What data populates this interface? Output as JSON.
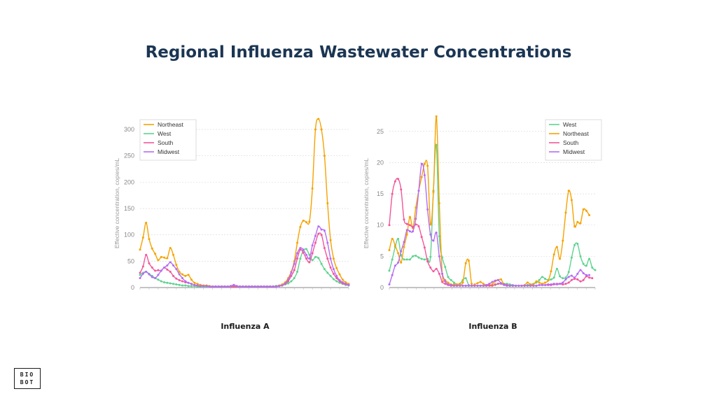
{
  "page": {
    "title": "Regional Influenza Wastewater Concentrations"
  },
  "logo": {
    "line1": "BIO",
    "line2": "BOT"
  },
  "colors": {
    "Northeast": "#f5a300",
    "West": "#5ed38f",
    "South": "#f2579a",
    "Midwest": "#b56cf5"
  },
  "chart_data": [
    {
      "type": "line",
      "title": "Influenza A",
      "ylabel": "Effective concentration, copies/mL",
      "ylim": [
        0,
        320
      ],
      "yticks": [
        0,
        50,
        100,
        150,
        200,
        250,
        300
      ],
      "grid": true,
      "legend_position": "top-left",
      "series": [
        {
          "name": "Northeast",
          "values": [
            72,
            95,
            123,
            92,
            74,
            64,
            52,
            58,
            57,
            56,
            75,
            62,
            43,
            30,
            25,
            22,
            24,
            15,
            9,
            7,
            5,
            4,
            4,
            3,
            2,
            2,
            2,
            2,
            2,
            2,
            2,
            2,
            2,
            2,
            2,
            2,
            2,
            2,
            2,
            2,
            2,
            2,
            2,
            2,
            2,
            3,
            4,
            6,
            10,
            18,
            30,
            50,
            85,
            115,
            127,
            124,
            125,
            188,
            300,
            320,
            300,
            250,
            160,
            90,
            55,
            37,
            25,
            15,
            10,
            7
          ]
        },
        {
          "name": "West",
          "values": [
            24,
            28,
            30,
            26,
            22,
            18,
            15,
            12,
            10,
            9,
            8,
            7,
            6,
            5,
            4,
            4,
            3,
            3,
            3,
            2,
            2,
            2,
            2,
            2,
            2,
            2,
            2,
            2,
            2,
            2,
            2,
            2,
            2,
            2,
            2,
            2,
            2,
            2,
            2,
            2,
            2,
            2,
            2,
            2,
            2,
            3,
            3,
            4,
            6,
            8,
            12,
            18,
            30,
            55,
            70,
            73,
            62,
            52,
            58,
            56,
            45,
            35,
            28,
            22,
            16,
            12,
            9,
            7,
            5,
            4
          ]
        },
        {
          "name": "South",
          "values": [
            28,
            40,
            62,
            46,
            38,
            32,
            33,
            32,
            38,
            34,
            30,
            22,
            17,
            14,
            12,
            10,
            9,
            7,
            5,
            4,
            3,
            3,
            3,
            2,
            2,
            2,
            2,
            2,
            2,
            2,
            2,
            2,
            2,
            2,
            2,
            2,
            2,
            2,
            2,
            2,
            2,
            2,
            2,
            2,
            2,
            2,
            3,
            4,
            7,
            12,
            22,
            33,
            55,
            72,
            66,
            55,
            48,
            65,
            85,
            102,
            100,
            75,
            55,
            38,
            26,
            18,
            12,
            8,
            6,
            5
          ]
        },
        {
          "name": "Midwest",
          "values": [
            18,
            26,
            30,
            25,
            20,
            18,
            24,
            32,
            38,
            42,
            48,
            42,
            35,
            25,
            18,
            12,
            9,
            7,
            5,
            4,
            3,
            3,
            3,
            2,
            2,
            2,
            2,
            2,
            2,
            2,
            3,
            5,
            3,
            2,
            2,
            2,
            2,
            2,
            2,
            2,
            2,
            2,
            2,
            2,
            2,
            2,
            3,
            4,
            8,
            15,
            28,
            45,
            65,
            75,
            72,
            62,
            55,
            80,
            98,
            116,
            110,
            108,
            85,
            55,
            35,
            22,
            14,
            10,
            7,
            5
          ]
        }
      ],
      "xticks_count": 24
    },
    {
      "type": "line",
      "title": "Influenza B",
      "ylabel": "Effective concentration, copies/mL",
      "ylim": [
        0,
        27
      ],
      "yticks": [
        0,
        5,
        10,
        15,
        20,
        25
      ],
      "grid": true,
      "legend_position": "top-right",
      "series": [
        {
          "name": "West",
          "values": [
            2.7,
            4.5,
            6.5,
            7.8,
            5.2,
            4.5,
            4.5,
            4.5,
            5.0,
            5.1,
            4.8,
            4.6,
            4.5,
            4.6,
            4.9,
            15.5,
            22.8,
            8.2,
            4.8,
            3.3,
            1.7,
            1.2,
            0.8,
            0.5,
            0.6,
            1.2,
            1.5,
            0.4,
            0.3,
            0.3,
            0.3,
            0.3,
            0.3,
            0.3,
            0.4,
            0.4,
            0.4,
            0.6,
            0.7,
            0.6,
            0.6,
            0.5,
            0.4,
            0.3,
            0.3,
            0.3,
            0.3,
            0.4,
            0.5,
            0.6,
            0.8,
            1.2,
            1.7,
            1.4,
            1.2,
            1.3,
            1.6,
            3.0,
            1.8,
            1.5,
            1.6,
            2.5,
            4.8,
            6.8,
            7.0,
            5.0,
            3.8,
            3.5,
            4.6,
            3.2,
            2.8
          ]
        },
        {
          "name": "Northeast",
          "values": [
            6.0,
            7.8,
            6.7,
            5.5,
            4.0,
            6.5,
            8.5,
            11.3,
            9.5,
            12.8,
            15.5,
            17.7,
            19.8,
            19.5,
            10.1,
            15.3,
            27.4,
            13.5,
            2.2,
            1.2,
            0.8,
            0.5,
            0.5,
            0.5,
            0.6,
            0.8,
            3.9,
            4.3,
            0.6,
            0.5,
            0.7,
            0.9,
            0.6,
            0.4,
            0.4,
            0.5,
            1.0,
            1.2,
            1.3,
            0.5,
            0.4,
            0.3,
            0.3,
            0.3,
            0.3,
            0.3,
            0.4,
            0.8,
            0.5,
            0.5,
            1.0,
            0.8,
            0.6,
            0.8,
            1.1,
            2.6,
            5.3,
            6.5,
            4.6,
            7.5,
            12.0,
            15.5,
            14.0,
            9.8,
            10.5,
            10.3,
            12.5,
            12.3,
            11.6
          ]
        },
        {
          "name": "South",
          "values": [
            10.0,
            15.0,
            17.0,
            17.4,
            15.7,
            10.9,
            10.2,
            10.0,
            9.7,
            10.1,
            9.8,
            8.1,
            6.4,
            4.2,
            3.2,
            2.6,
            3.0,
            2.2,
            0.9,
            0.6,
            0.4,
            0.3,
            0.3,
            0.3,
            0.3,
            0.3,
            0.3,
            0.3,
            0.3,
            0.3,
            0.3,
            0.3,
            0.3,
            0.3,
            0.3,
            0.3,
            0.5,
            0.6,
            0.6,
            0.5,
            0.4,
            0.3,
            0.3,
            0.3,
            0.3,
            0.3,
            0.3,
            0.3,
            0.3,
            0.3,
            0.3,
            0.4,
            0.4,
            0.4,
            0.4,
            0.4,
            0.5,
            0.6,
            0.6,
            0.5,
            0.6,
            0.8,
            1.2,
            1.4,
            1.3,
            1.0,
            1.2,
            1.8,
            1.6,
            1.5
          ]
        },
        {
          "name": "Midwest",
          "values": [
            0.5,
            2.0,
            3.5,
            4.0,
            5.8,
            7.3,
            9.2,
            9.0,
            9.0,
            11.0,
            15.5,
            19.8,
            18.0,
            12.5,
            8.5,
            7.5,
            8.8,
            5.0,
            2.2,
            1.0,
            0.5,
            0.4,
            0.3,
            0.3,
            0.3,
            0.3,
            0.3,
            0.3,
            0.3,
            0.3,
            0.3,
            0.3,
            0.3,
            0.4,
            0.6,
            0.9,
            1.1,
            1.2,
            0.7,
            0.4,
            0.3,
            0.3,
            0.3,
            0.3,
            0.3,
            0.3,
            0.3,
            0.3,
            0.3,
            0.3,
            0.3,
            0.4,
            0.4,
            0.4,
            0.5,
            0.5,
            0.6,
            0.5,
            0.6,
            0.8,
            1.3,
            1.7,
            1.9,
            1.6,
            2.2,
            2.8,
            2.3,
            2.0,
            2.0
          ]
        }
      ],
      "xticks_count": 24
    }
  ]
}
